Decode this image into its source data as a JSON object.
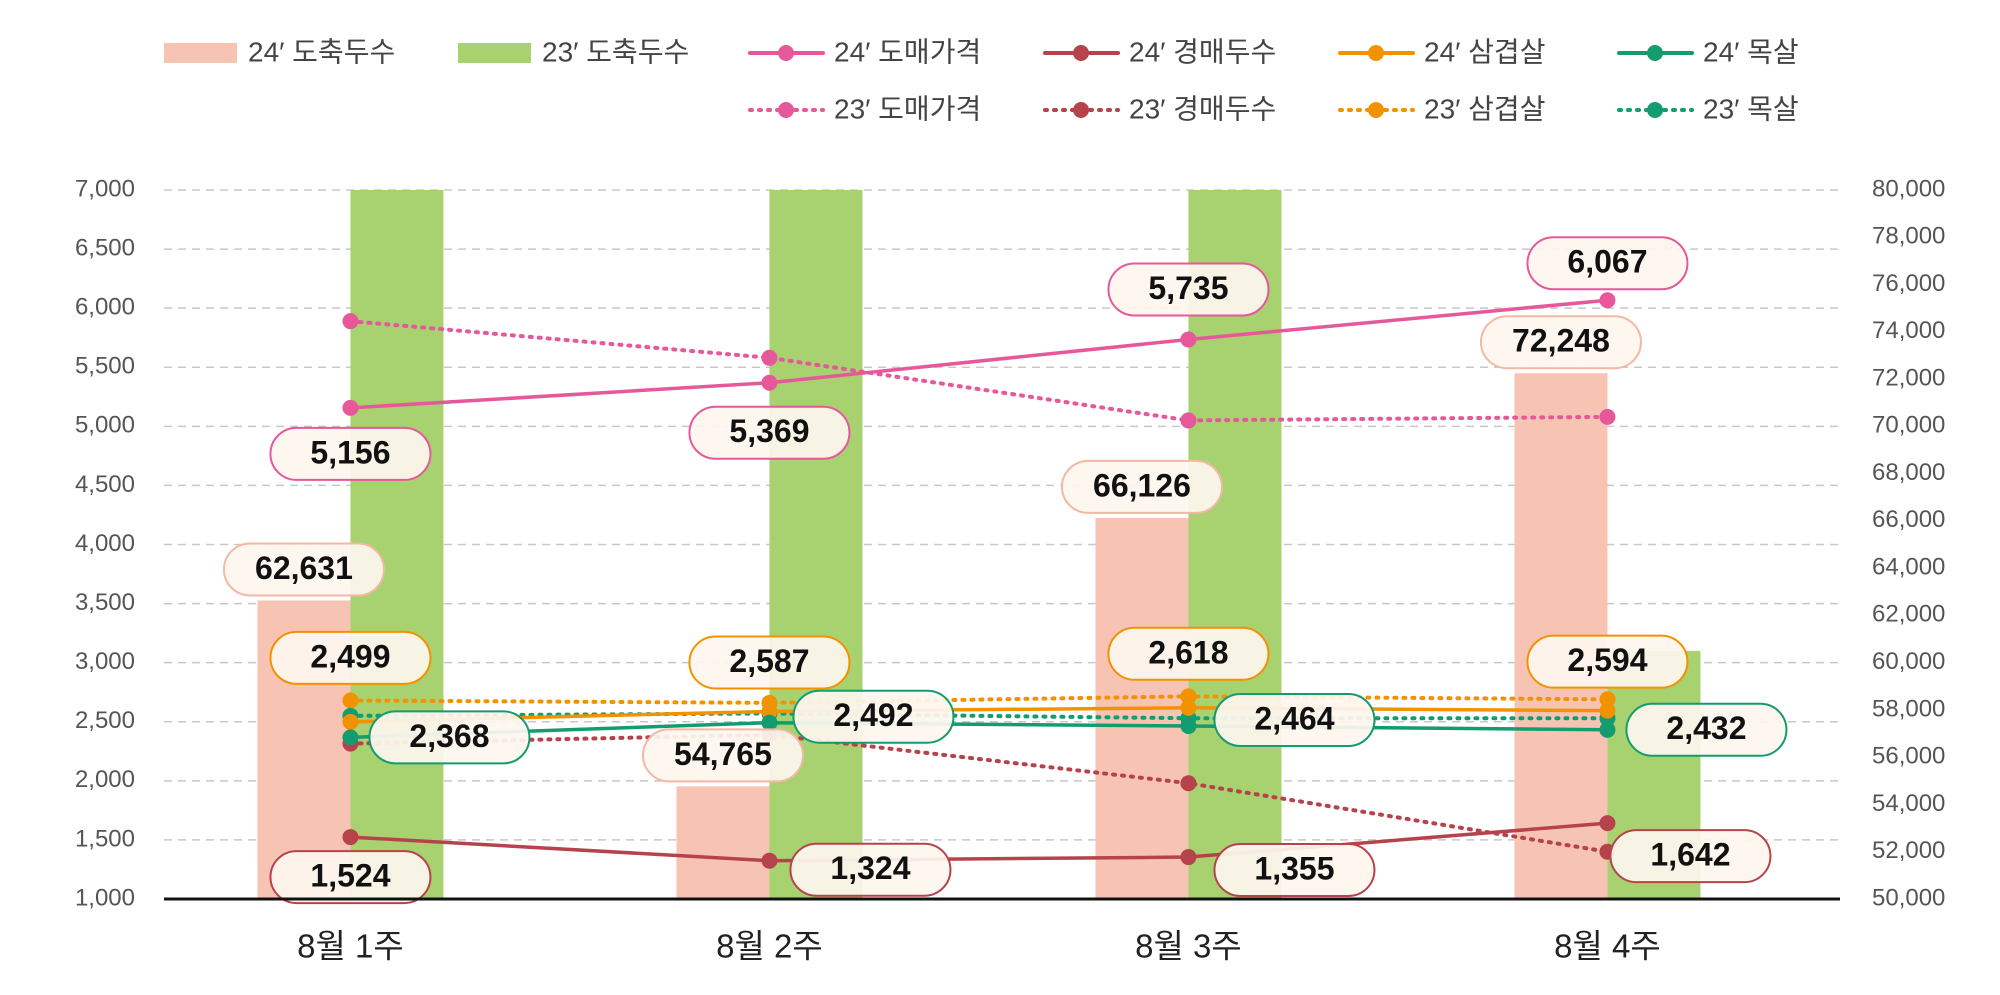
{
  "chart_data": {
    "type": "bar-line",
    "categories": [
      "8월 1주",
      "8월 2주",
      "8월 3주",
      "8월 4주"
    ],
    "ylim": [
      1000,
      7000
    ],
    "yticks": [
      {
        "value": 1000,
        "label": "1,000"
      },
      {
        "value": 1500,
        "label": "1,500"
      },
      {
        "value": 2000,
        "label": "2,000"
      },
      {
        "value": 2500,
        "label": "2,500"
      },
      {
        "value": 3000,
        "label": "3,000"
      },
      {
        "value": 3500,
        "label": "3,500"
      },
      {
        "value": 4000,
        "label": "4,000"
      },
      {
        "value": 4500,
        "label": "4,500"
      },
      {
        "value": 5000,
        "label": "5,000"
      },
      {
        "value": 5500,
        "label": "5,500"
      },
      {
        "value": 6000,
        "label": "6,000"
      },
      {
        "value": 6500,
        "label": "6,500"
      },
      {
        "value": 7000,
        "label": "7,000"
      }
    ],
    "y2lim": [
      50000,
      80000
    ],
    "y2ticks": [
      {
        "value": 50000,
        "label": "50,000"
      },
      {
        "value": 52000,
        "label": "52,000"
      },
      {
        "value": 54000,
        "label": "54,000"
      },
      {
        "value": 56000,
        "label": "56,000"
      },
      {
        "value": 58000,
        "label": "58,000"
      },
      {
        "value": 60000,
        "label": "60,000"
      },
      {
        "value": 62000,
        "label": "62,000"
      },
      {
        "value": 64000,
        "label": "64,000"
      },
      {
        "value": 66000,
        "label": "66,000"
      },
      {
        "value": 68000,
        "label": "68,000"
      },
      {
        "value": 70000,
        "label": "70,000"
      },
      {
        "value": 72000,
        "label": "72,000"
      },
      {
        "value": 74000,
        "label": "74,000"
      },
      {
        "value": 76000,
        "label": "76,000"
      },
      {
        "value": 78000,
        "label": "78,000"
      },
      {
        "value": 80000,
        "label": "80,000"
      }
    ],
    "grid": true,
    "legend": "top",
    "series": [
      {
        "name": "24′ 도축두수",
        "type": "bar",
        "axis": "y2",
        "color": "#f7c4b4",
        "values": [
          62631,
          54765,
          66126,
          72248
        ],
        "value_labels": [
          "62,631",
          "54,765",
          "66,126",
          "72,248"
        ]
      },
      {
        "name": "23′ 도축두수",
        "type": "bar",
        "axis": "y2",
        "color": "#a8d16f",
        "values": [
          80000,
          80000,
          80000,
          60500
        ]
      },
      {
        "name": "24′ 도매가격",
        "type": "line",
        "style": "solid",
        "color": "#e6589a",
        "values": [
          5156,
          5369,
          5735,
          6067
        ],
        "value_labels": [
          "5,156",
          "5,369",
          "5,735",
          "6,067"
        ]
      },
      {
        "name": "24′ 경매두수",
        "type": "line",
        "style": "solid",
        "color": "#b6434c",
        "values": [
          1524,
          1324,
          1355,
          1642
        ],
        "value_labels": [
          "1,524",
          "1,324",
          "1,355",
          "1,642"
        ]
      },
      {
        "name": "24′ 삼겹살",
        "type": "line",
        "style": "solid",
        "color": "#f39200",
        "values": [
          2499,
          2587,
          2618,
          2594
        ],
        "value_labels": [
          "2,499",
          "2,587",
          "2,618",
          "2,594"
        ]
      },
      {
        "name": "24′ 목살",
        "type": "line",
        "style": "solid",
        "color": "#139c6f",
        "values": [
          2368,
          2492,
          2464,
          2432
        ],
        "value_labels": [
          "2,368",
          "2,492",
          "2,464",
          "2,432"
        ]
      },
      {
        "name": "23′ 도매가격",
        "type": "line",
        "style": "dotted",
        "color": "#e6589a",
        "values": [
          5890,
          5580,
          5050,
          5080
        ]
      },
      {
        "name": "23′ 경매두수",
        "type": "line",
        "style": "dotted",
        "color": "#b6434c",
        "values": [
          2315,
          2390,
          1980,
          1400
        ]
      },
      {
        "name": "23′ 삼겹살",
        "type": "line",
        "style": "dotted",
        "color": "#f39200",
        "values": [
          2680,
          2660,
          2715,
          2690
        ]
      },
      {
        "name": "23′ 목살",
        "type": "line",
        "style": "dotted",
        "color": "#139c6f",
        "values": [
          2550,
          2570,
          2530,
          2530
        ]
      }
    ]
  }
}
